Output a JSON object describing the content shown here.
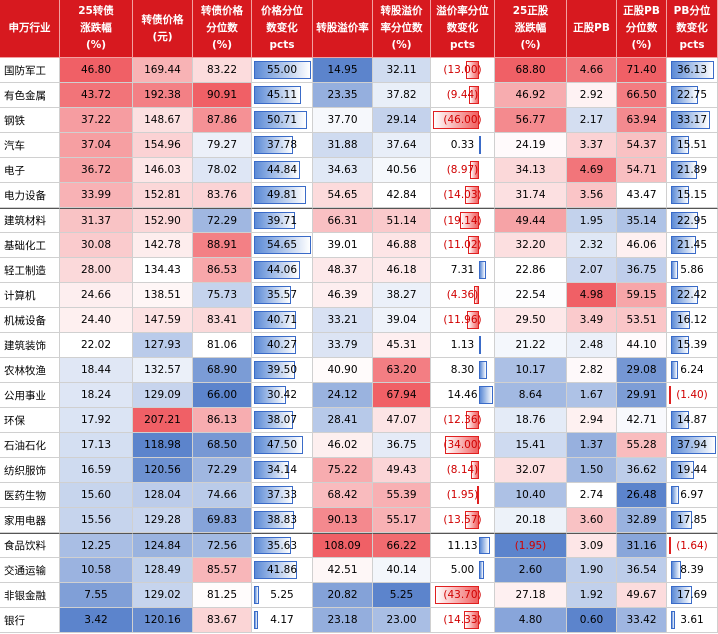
{
  "table": {
    "header": [
      [
        "申万行业"
      ],
      [
        "25转债",
        "涨跌幅",
        "(%)"
      ],
      [
        "转债价格",
        "(元)"
      ],
      [
        "转债价格",
        "分位数",
        "(%)"
      ],
      [
        "价格分位",
        "数变化",
        "pcts"
      ],
      [
        "转股溢价率"
      ],
      [
        "转股溢价",
        "率分位数",
        "(%)"
      ],
      [
        "溢价率分位",
        "数变化",
        "pcts"
      ],
      [
        "25正股",
        "涨跌幅",
        "(%)"
      ],
      [
        "正股PB"
      ],
      [
        "正股PB",
        "分位数",
        "(%)"
      ],
      [
        "PB分位",
        "数变化",
        "pcts"
      ]
    ],
    "rows": [
      [
        "国防军工",
        "46.80",
        "169.44",
        "83.22",
        "55.00",
        "14.95",
        "32.11",
        "(13.00)",
        "68.80",
        "4.66",
        "71.40",
        "36.13"
      ],
      [
        "有色金属",
        "43.72",
        "192.38",
        "90.91",
        "45.11",
        "23.35",
        "37.82",
        "(9.44)",
        "46.92",
        "2.92",
        "66.50",
        "22.75"
      ],
      [
        "钢铁",
        "37.22",
        "148.67",
        "87.86",
        "50.71",
        "37.70",
        "29.14",
        "(46.00)",
        "56.77",
        "2.17",
        "63.94",
        "33.17"
      ],
      [
        "汽车",
        "37.04",
        "154.96",
        "79.27",
        "37.78",
        "31.88",
        "37.64",
        "0.33",
        "24.19",
        "3.37",
        "54.37",
        "15.51"
      ],
      [
        "电子",
        "36.72",
        "146.03",
        "78.02",
        "44.84",
        "34.63",
        "40.56",
        "(8.97)",
        "34.13",
        "4.69",
        "54.71",
        "21.89"
      ],
      [
        "电力设备",
        "33.99",
        "152.81",
        "83.76",
        "49.81",
        "54.65",
        "42.84",
        "(14.03)",
        "31.74",
        "3.56",
        "43.47",
        "15.15"
      ],
      [
        "建筑材料",
        "31.37",
        "152.90",
        "72.29",
        "39.71",
        "66.31",
        "51.14",
        "(19.14)",
        "49.44",
        "1.95",
        "35.14",
        "22.95"
      ],
      [
        "基础化工",
        "30.08",
        "142.78",
        "88.91",
        "54.65",
        "39.01",
        "46.88",
        "(11.02)",
        "32.20",
        "2.32",
        "46.06",
        "21.45"
      ],
      [
        "轻工制造",
        "28.00",
        "134.43",
        "86.53",
        "44.06",
        "48.37",
        "46.18",
        "7.31",
        "22.86",
        "2.07",
        "36.75",
        "5.86"
      ],
      [
        "计算机",
        "24.66",
        "138.51",
        "75.73",
        "35.57",
        "46.39",
        "38.27",
        "(4.36)",
        "22.54",
        "4.98",
        "59.15",
        "22.42"
      ],
      [
        "机械设备",
        "24.40",
        "147.59",
        "83.41",
        "40.71",
        "33.21",
        "39.04",
        "(11.96)",
        "29.50",
        "3.49",
        "53.51",
        "16.12"
      ],
      [
        "建筑装饰",
        "22.02",
        "127.93",
        "81.06",
        "40.27",
        "33.79",
        "45.31",
        "1.13",
        "21.22",
        "2.48",
        "44.10",
        "15.39"
      ],
      [
        "农林牧渔",
        "18.44",
        "132.57",
        "68.90",
        "39.50",
        "40.90",
        "63.20",
        "8.30",
        "10.17",
        "2.82",
        "29.08",
        "6.24"
      ],
      [
        "公用事业",
        "18.24",
        "129.09",
        "66.00",
        "30.42",
        "24.12",
        "67.94",
        "14.46",
        "8.64",
        "1.67",
        "29.91",
        "(1.40)"
      ],
      [
        "环保",
        "17.92",
        "207.21",
        "86.13",
        "38.07",
        "28.41",
        "47.07",
        "(12.36)",
        "18.76",
        "2.94",
        "42.71",
        "14.87"
      ],
      [
        "石油石化",
        "17.13",
        "118.98",
        "68.50",
        "47.50",
        "46.02",
        "36.75",
        "(34.00)",
        "15.41",
        "1.37",
        "55.28",
        "37.94"
      ],
      [
        "纺织服饰",
        "16.59",
        "120.56",
        "72.29",
        "34.14",
        "75.22",
        "49.43",
        "(8.14)",
        "32.07",
        "1.50",
        "36.62",
        "19.44"
      ],
      [
        "医药生物",
        "15.60",
        "128.04",
        "74.66",
        "37.33",
        "68.42",
        "55.39",
        "(1.95)",
        "10.40",
        "2.74",
        "26.48",
        "6.97"
      ],
      [
        "家用电器",
        "15.56",
        "129.28",
        "69.83",
        "38.83",
        "90.13",
        "55.17",
        "(13.57)",
        "20.18",
        "3.60",
        "32.89",
        "17.85"
      ],
      [
        "食品饮料",
        "12.25",
        "124.84",
        "72.56",
        "35.63",
        "108.09",
        "66.22",
        "11.13",
        "(1.95)",
        "3.09",
        "31.16",
        "(1.64)"
      ],
      [
        "交通运输",
        "10.58",
        "128.49",
        "85.57",
        "41.86",
        "42.51",
        "40.14",
        "5.00",
        "2.60",
        "1.90",
        "36.54",
        "8.39"
      ],
      [
        "非银金融",
        "7.55",
        "129.02",
        "81.25",
        "5.25",
        "20.82",
        "5.25",
        "(43.70)",
        "27.18",
        "1.92",
        "49.67",
        "17.69"
      ],
      [
        "银行",
        "3.42",
        "120.16",
        "83.67",
        "4.17",
        "23.18",
        "23.00",
        "(14.33)",
        "4.80",
        "0.60",
        "33.42",
        "3.61"
      ]
    ]
  }
}
